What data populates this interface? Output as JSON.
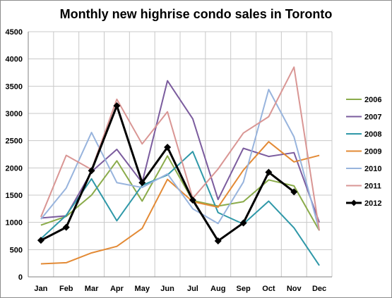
{
  "chart_data": {
    "type": "line",
    "title": "Monthly new highrise condo sales in Toronto",
    "xlabel": "",
    "ylabel": "",
    "categories": [
      "Jan",
      "Feb",
      "Mar",
      "Apr",
      "May",
      "Jun",
      "Jul",
      "Aug",
      "Sep",
      "Oct",
      "Nov",
      "Dec"
    ],
    "ylim": [
      0,
      4500
    ],
    "yticks": [
      0,
      500,
      1000,
      1500,
      2000,
      2500,
      3000,
      3500,
      4000,
      4500
    ],
    "grid": true,
    "legend_position": "right",
    "series": [
      {
        "name": "2006",
        "color": "#8aab4a",
        "values": [
          950,
          1110,
          1500,
          2130,
          1390,
          2220,
          1400,
          1300,
          1380,
          1780,
          1670,
          850
        ]
      },
      {
        "name": "2007",
        "color": "#7b5c9e",
        "values": [
          1080,
          1120,
          1930,
          2340,
          1730,
          3600,
          2900,
          1420,
          2360,
          2210,
          2280,
          1000
        ]
      },
      {
        "name": "2008",
        "color": "#2f98a8",
        "values": [
          700,
          1130,
          1800,
          1030,
          1680,
          1870,
          2300,
          1180,
          970,
          1390,
          900,
          210
        ]
      },
      {
        "name": "2009",
        "color": "#e38a35",
        "values": [
          240,
          260,
          440,
          560,
          890,
          1790,
          1380,
          1280,
          1960,
          2480,
          2110,
          2230
        ]
      },
      {
        "name": "2010",
        "color": "#98b4dd",
        "values": [
          1060,
          1630,
          2650,
          1730,
          1640,
          1890,
          1250,
          980,
          1740,
          3440,
          2570,
          850
        ]
      },
      {
        "name": "2011",
        "color": "#d99694",
        "values": [
          1100,
          2230,
          1970,
          3260,
          2440,
          3030,
          1440,
          1980,
          2640,
          2940,
          3850,
          850
        ]
      },
      {
        "name": "2012",
        "color": "#000000",
        "marker": "diamond",
        "values": [
          670,
          910,
          1950,
          3140,
          1730,
          2380,
          1410,
          660,
          990,
          1920,
          1560,
          null
        ]
      }
    ]
  }
}
